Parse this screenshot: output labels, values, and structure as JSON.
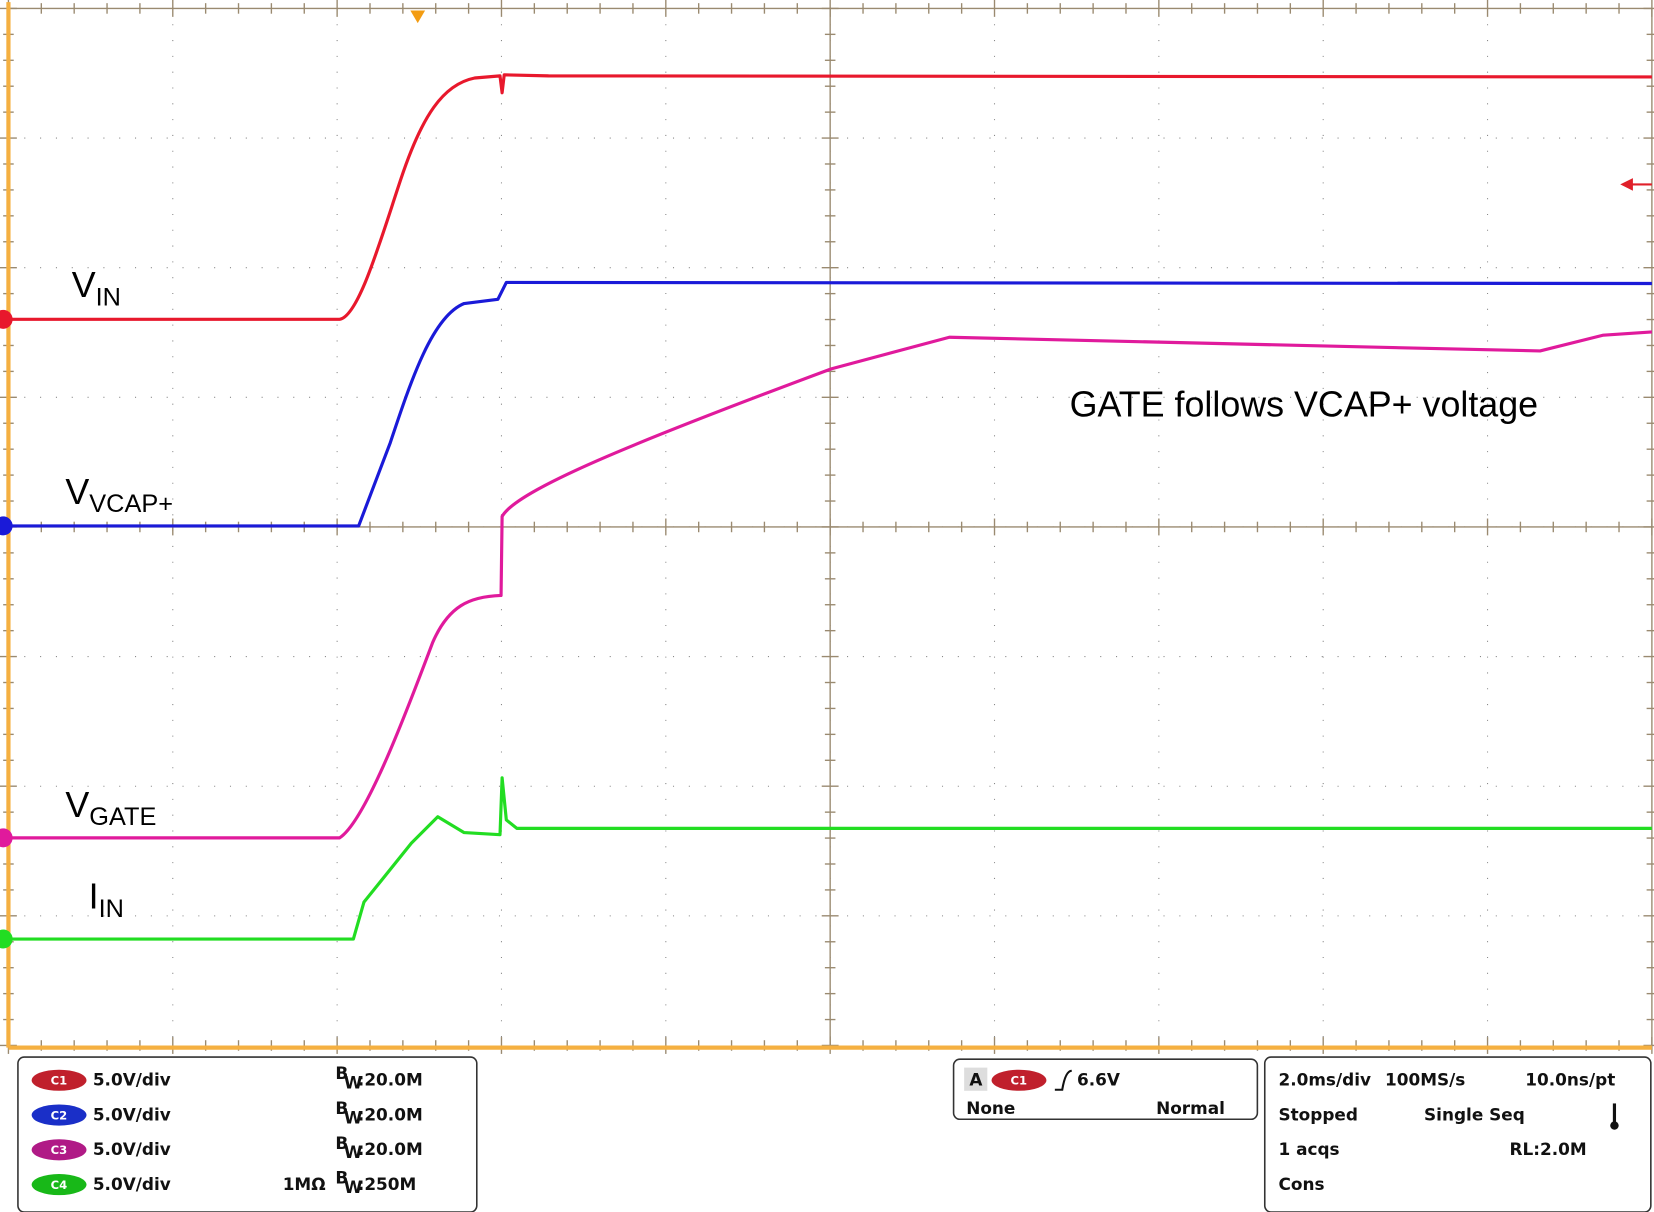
{
  "traces": [
    {
      "label": "V",
      "subscript": "IN"
    },
    {
      "label": "V",
      "subscript": "VCAP+"
    },
    {
      "label": "V",
      "subscript": "GATE"
    },
    {
      "label": "I",
      "subscript": "IN"
    }
  ],
  "annotation": "GATE follows VCAP+ voltage",
  "bw_letters": [
    "B",
    "W"
  ],
  "channels": [
    {
      "badge": "C1",
      "scale": "5.0V/div",
      "bandwidth": ":20.0M"
    },
    {
      "badge": "C2",
      "scale": "5.0V/div",
      "bandwidth": ":20.0M"
    },
    {
      "badge": "C3",
      "scale": "5.0V/div",
      "bandwidth": ":20.0M"
    },
    {
      "badge": "C4",
      "scale": "5.0V/div",
      "impedance": "1MΩ",
      "bandwidth": ":250M"
    }
  ],
  "trigger": {
    "mode": "A",
    "source": "C1",
    "level": "6.6V",
    "coupling": "None",
    "sweep": "Normal"
  },
  "timebase": {
    "scale": "2.0ms/div",
    "sample_rate": "100MS/s",
    "resolution": "10.0ns/pt",
    "state": "Stopped",
    "acquisition": "Single Seq",
    "count": "1 acqs",
    "record_length": "RL:2.0M",
    "display": "Cons"
  }
}
